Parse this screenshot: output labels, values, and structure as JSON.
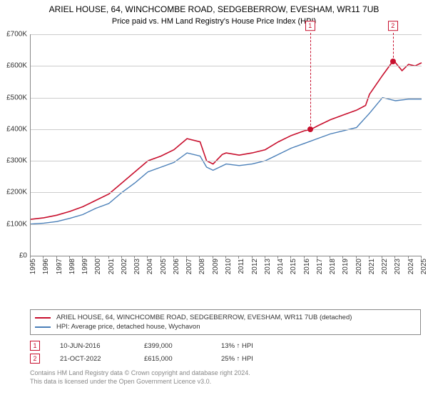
{
  "title": "ARIEL HOUSE, 64, WINCHCOMBE ROAD, SEDGEBERROW, EVESHAM, WR11 7UB",
  "subtitle": "Price paid vs. HM Land Registry's House Price Index (HPI)",
  "chart": {
    "type": "line",
    "background_color": "#ffffff",
    "grid_color": "#cccccc",
    "axis_color": "#888888",
    "label_fontsize": 10,
    "ylim": [
      0,
      700000
    ],
    "ytick_step": 100000,
    "yticks": [
      "£0",
      "£100K",
      "£200K",
      "£300K",
      "£400K",
      "£500K",
      "£600K",
      "£700K"
    ],
    "xlim": [
      1995,
      2025
    ],
    "xticks": [
      1995,
      1996,
      1997,
      1998,
      1999,
      2000,
      2001,
      2002,
      2003,
      2004,
      2005,
      2006,
      2007,
      2008,
      2009,
      2010,
      2011,
      2012,
      2013,
      2014,
      2015,
      2016,
      2017,
      2018,
      2019,
      2020,
      2021,
      2022,
      2023,
      2024,
      2025
    ],
    "series": [
      {
        "name": "ARIEL HOUSE, 64, WINCHCOMBE ROAD, SEDGEBERROW, EVESHAM, WR11 7UB (detached)",
        "color": "#c8102e",
        "line_width": 1.6,
        "data": [
          [
            1995,
            115000
          ],
          [
            1996,
            120000
          ],
          [
            1997,
            128000
          ],
          [
            1998,
            140000
          ],
          [
            1999,
            155000
          ],
          [
            2000,
            175000
          ],
          [
            2001,
            195000
          ],
          [
            2002,
            230000
          ],
          [
            2003,
            265000
          ],
          [
            2004,
            300000
          ],
          [
            2005,
            315000
          ],
          [
            2006,
            335000
          ],
          [
            2007,
            370000
          ],
          [
            2008,
            360000
          ],
          [
            2008.5,
            300000
          ],
          [
            2009,
            290000
          ],
          [
            2009.7,
            320000
          ],
          [
            2010,
            325000
          ],
          [
            2011,
            318000
          ],
          [
            2012,
            325000
          ],
          [
            2013,
            335000
          ],
          [
            2014,
            360000
          ],
          [
            2015,
            380000
          ],
          [
            2016,
            395000
          ],
          [
            2016.5,
            399000
          ],
          [
            2017,
            410000
          ],
          [
            2018,
            430000
          ],
          [
            2019,
            445000
          ],
          [
            2020,
            460000
          ],
          [
            2020.7,
            475000
          ],
          [
            2021,
            510000
          ],
          [
            2022,
            570000
          ],
          [
            2022.8,
            615000
          ],
          [
            2023,
            610000
          ],
          [
            2023.5,
            585000
          ],
          [
            2024,
            605000
          ],
          [
            2024.5,
            600000
          ],
          [
            2025,
            610000
          ]
        ]
      },
      {
        "name": "HPI: Average price, detached house, Wychavon",
        "color": "#4a7fb8",
        "line_width": 1.4,
        "data": [
          [
            1995,
            100000
          ],
          [
            1996,
            103000
          ],
          [
            1997,
            108000
          ],
          [
            1998,
            118000
          ],
          [
            1999,
            130000
          ],
          [
            2000,
            150000
          ],
          [
            2001,
            165000
          ],
          [
            2002,
            200000
          ],
          [
            2003,
            230000
          ],
          [
            2004,
            265000
          ],
          [
            2005,
            280000
          ],
          [
            2006,
            295000
          ],
          [
            2007,
            325000
          ],
          [
            2008,
            315000
          ],
          [
            2008.5,
            280000
          ],
          [
            2009,
            270000
          ],
          [
            2010,
            290000
          ],
          [
            2011,
            285000
          ],
          [
            2012,
            290000
          ],
          [
            2013,
            300000
          ],
          [
            2014,
            320000
          ],
          [
            2015,
            340000
          ],
          [
            2016,
            355000
          ],
          [
            2017,
            370000
          ],
          [
            2018,
            385000
          ],
          [
            2019,
            395000
          ],
          [
            2020,
            405000
          ],
          [
            2021,
            450000
          ],
          [
            2022,
            500000
          ],
          [
            2023,
            490000
          ],
          [
            2024,
            495000
          ],
          [
            2025,
            495000
          ]
        ]
      }
    ],
    "sale_markers": [
      {
        "n": "1",
        "x": 2016.45,
        "y": 399000
      },
      {
        "n": "2",
        "x": 2022.8,
        "y": 615000
      }
    ]
  },
  "legend": {
    "items": [
      {
        "color": "#c8102e",
        "label": "ARIEL HOUSE, 64, WINCHCOMBE ROAD, SEDGEBERROW, EVESHAM, WR11 7UB (detached)"
      },
      {
        "color": "#4a7fb8",
        "label": "HPI: Average price, detached house, Wychavon"
      }
    ]
  },
  "sales": [
    {
      "n": "1",
      "date": "10-JUN-2016",
      "price": "£399,000",
      "hpi": "13% ↑ HPI"
    },
    {
      "n": "2",
      "date": "21-OCT-2022",
      "price": "£615,000",
      "hpi": "25% ↑ HPI"
    }
  ],
  "attribution": {
    "line1": "Contains HM Land Registry data © Crown copyright and database right 2024.",
    "line2": "This data is licensed under the Open Government Licence v3.0."
  }
}
